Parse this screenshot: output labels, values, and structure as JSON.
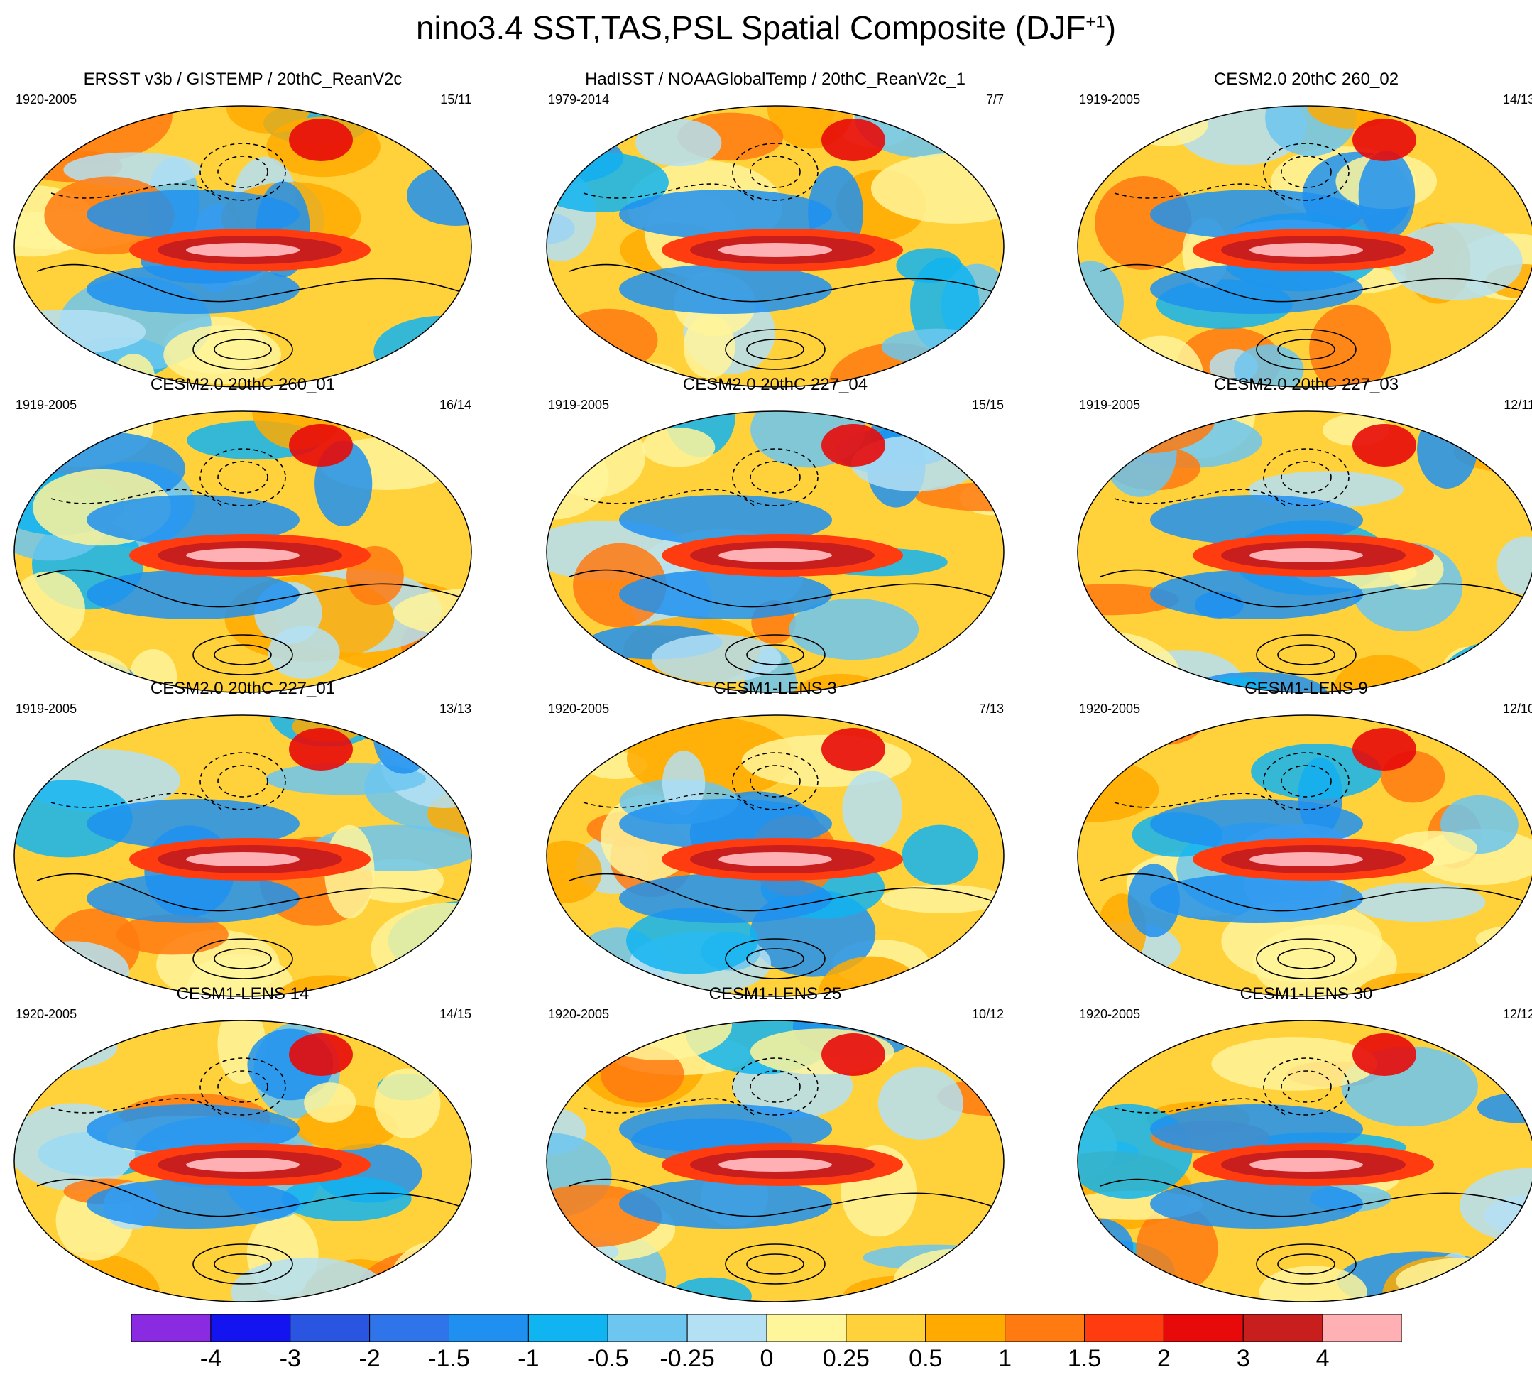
{
  "title_main": "nino3.4 SST,TAS,PSL Spatial Composite (DJF",
  "title_sup": "+1",
  "title_end": ")",
  "panels": [
    {
      "title": "ERSST v3b / GISTEMP / 20thC_ReanV2c",
      "years": "1920-2005",
      "count": "15/11"
    },
    {
      "title": "HadISST / NOAAGlobalTemp / 20thC_ReanV2c_1",
      "years": "1979-2014",
      "count": "7/7"
    },
    {
      "title": "CESM2.0 20thC 260_02",
      "years": "1919-2005",
      "count": "14/13"
    },
    {
      "title": "CESM2.0 20thC 260_01",
      "years": "1919-2005",
      "count": "16/14"
    },
    {
      "title": "CESM2.0 20thC 227_04",
      "years": "1919-2005",
      "count": "15/15"
    },
    {
      "title": "CESM2.0 20thC 227_03",
      "years": "1919-2005",
      "count": "12/11"
    },
    {
      "title": "CESM2.0 20thC 227_01",
      "years": "1919-2005",
      "count": "13/13"
    },
    {
      "title": "CESM1-LENS 3",
      "years": "1920-2005",
      "count": "7/13"
    },
    {
      "title": "CESM1-LENS 9",
      "years": "1920-2005",
      "count": "12/10"
    },
    {
      "title": "CESM1-LENS 14",
      "years": "1920-2005",
      "count": "14/15"
    },
    {
      "title": "CESM1-LENS 25",
      "years": "1920-2005",
      "count": "10/12"
    },
    {
      "title": "CESM1-LENS 30",
      "years": "1920-2005",
      "count": "12/12"
    }
  ],
  "colorbar": {
    "labels": [
      "-4",
      "-3",
      "-2",
      "-1.5",
      "-1",
      "-0.5",
      "-0.25",
      "0",
      "0.25",
      "0.5",
      "1",
      "1.5",
      "2",
      "3",
      "4"
    ],
    "colors": [
      "#8a2be2",
      "#1414f0",
      "#2a55e0",
      "#2f74e8",
      "#1f90f0",
      "#10b4f0",
      "#6cc6f0",
      "#b4e0f4",
      "#fff59a",
      "#ffd23c",
      "#ffaa00",
      "#ff7a10",
      "#ff3c10",
      "#e80a0a",
      "#c81e1e",
      "#ffb0b4"
    ]
  },
  "chart_data": {
    "type": "heatmap",
    "title": "nino3.4 SST,TAS,PSL Spatial Composite (DJF+1)",
    "panel_count": 12,
    "grid": false,
    "colorbar_levels": [
      -4,
      -3,
      -2,
      -1.5,
      -1,
      -0.5,
      -0.25,
      0,
      0.25,
      0.5,
      1,
      1.5,
      2,
      3,
      4
    ],
    "colorbar_placement": "bottom"
  }
}
